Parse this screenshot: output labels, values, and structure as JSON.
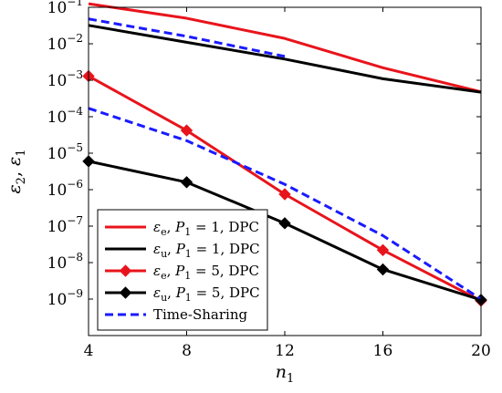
{
  "chart_data": {
    "type": "line",
    "xlabel": "n_1",
    "ylabel": "ε_2, ε_1",
    "x_ticks": [
      "4",
      "8",
      "12",
      "16",
      "20"
    ],
    "y_ticks": [
      {
        "value": -1,
        "base": "10",
        "exp": "−1"
      },
      {
        "value": -2,
        "base": "10",
        "exp": "−2"
      },
      {
        "value": -3,
        "base": "10",
        "exp": "−3"
      },
      {
        "value": -4,
        "base": "10",
        "exp": "−4"
      },
      {
        "value": -5,
        "base": "10",
        "exp": "−5"
      },
      {
        "value": -6,
        "base": "10",
        "exp": "−6"
      },
      {
        "value": -7,
        "base": "10",
        "exp": "−7"
      },
      {
        "value": -8,
        "base": "10",
        "exp": "−8"
      },
      {
        "value": -9,
        "base": "10",
        "exp": "−9"
      }
    ],
    "xlim": [
      4,
      20
    ],
    "ylim": [
      1e-10,
      0.1
    ],
    "y_scale": "log",
    "grid": false,
    "legend_position": "bottom-left",
    "series": [
      {
        "name": "ε_e, P_1 = 1, DPC",
        "color": "#e8141c",
        "dash": "solid",
        "marker": "none",
        "x": [
          4,
          8,
          12,
          16,
          20
        ],
        "y": [
          0.125,
          0.05,
          0.014,
          0.0022,
          0.00048
        ]
      },
      {
        "name": "ε_u, P_1 = 1, DPC",
        "color": "#000000",
        "dash": "solid",
        "marker": "none",
        "x": [
          4,
          8,
          12,
          16,
          20
        ],
        "y": [
          0.032,
          0.011,
          0.0038,
          0.0011,
          0.00047
        ]
      },
      {
        "name": "ε_e, P_1 = 5, DPC",
        "color": "#e8141c",
        "dash": "solid",
        "marker": "diamond",
        "x": [
          4,
          8,
          12,
          16,
          20
        ],
        "y": [
          0.0013,
          4.2e-05,
          7.5e-07,
          2.2e-08,
          9e-10
        ]
      },
      {
        "name": "ε_u, P_1 = 5, DPC",
        "color": "#000000",
        "dash": "solid",
        "marker": "diamond",
        "x": [
          4,
          8,
          12,
          16,
          20
        ],
        "y": [
          6e-06,
          1.6e-06,
          1.2e-07,
          6.5e-09,
          9.5e-10
        ]
      },
      {
        "name": "Time-Sharing",
        "color": "#1a1aff",
        "dash": "dashed",
        "marker": "none",
        "x": [
          4,
          8,
          12
        ],
        "y": [
          0.048,
          0.016,
          0.0045
        ]
      },
      {
        "name": "",
        "color": "#1a1aff",
        "dash": "dashed",
        "marker": "none",
        "x": [
          4,
          8,
          12,
          16,
          20
        ],
        "y": [
          0.00017,
          2.2e-05,
          1.4e-06,
          5.5e-08,
          1e-09
        ]
      }
    ],
    "legend": [
      {
        "sym": "ε",
        "sub": "e",
        "mid": ", ",
        "p": "P",
        "psub": "1",
        "val": " = 1, DPC",
        "color": "#e8141c",
        "dash": "solid",
        "marker": "none"
      },
      {
        "sym": "ε",
        "sub": "u",
        "mid": ", ",
        "p": "P",
        "psub": "1",
        "val": " = 1, DPC",
        "color": "#000000",
        "dash": "solid",
        "marker": "none"
      },
      {
        "sym": "ε",
        "sub": "e",
        "mid": ", ",
        "p": "P",
        "psub": "1",
        "val": " = 5, DPC",
        "color": "#e8141c",
        "dash": "solid",
        "marker": "diamond"
      },
      {
        "sym": "ε",
        "sub": "u",
        "mid": ", ",
        "p": "P",
        "psub": "1",
        "val": " = 5, DPC",
        "color": "#000000",
        "dash": "solid",
        "marker": "diamond"
      },
      {
        "text": "Time-Sharing",
        "color": "#1a1aff",
        "dash": "dashed",
        "marker": "none"
      }
    ]
  }
}
